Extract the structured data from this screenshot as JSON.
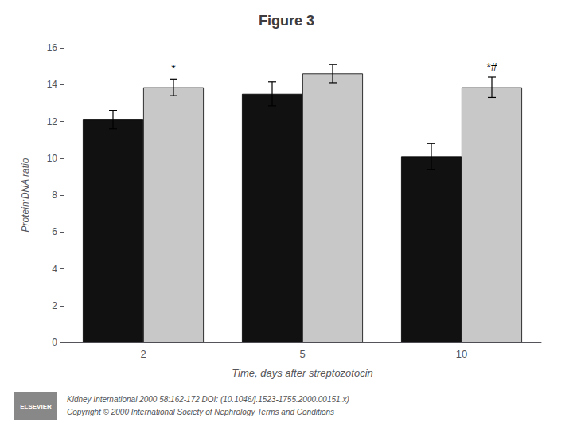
{
  "chart_data": {
    "type": "bar",
    "title": "Figure 3",
    "xlabel": "Time, days after streptozotocin",
    "ylabel": "Protein:DNA ratio",
    "categories": [
      "2",
      "5",
      "10"
    ],
    "series": [
      {
        "color": "#111111",
        "values": [
          12.1,
          13.5,
          10.1
        ],
        "errors": [
          0.5,
          0.65,
          0.7
        ],
        "annotations": [
          null,
          null,
          null
        ]
      },
      {
        "color": "#c8c8c8",
        "values": [
          13.85,
          14.6,
          13.85
        ],
        "errors": [
          0.45,
          0.5,
          0.55
        ],
        "annotations": [
          "*",
          null,
          "*#"
        ]
      }
    ],
    "ylim": [
      0,
      16
    ],
    "yticks": [
      0,
      2,
      4,
      6,
      8,
      10,
      12,
      14,
      16
    ],
    "grid": false,
    "logo": "ELSEVIER",
    "footer": [
      "Kidney International 2000 58:162-172 DOI: (10.1046/j.1523-1755.2000.00151.x)",
      "Copyright © 2000 International Society of Nephrology Terms and Conditions"
    ]
  }
}
